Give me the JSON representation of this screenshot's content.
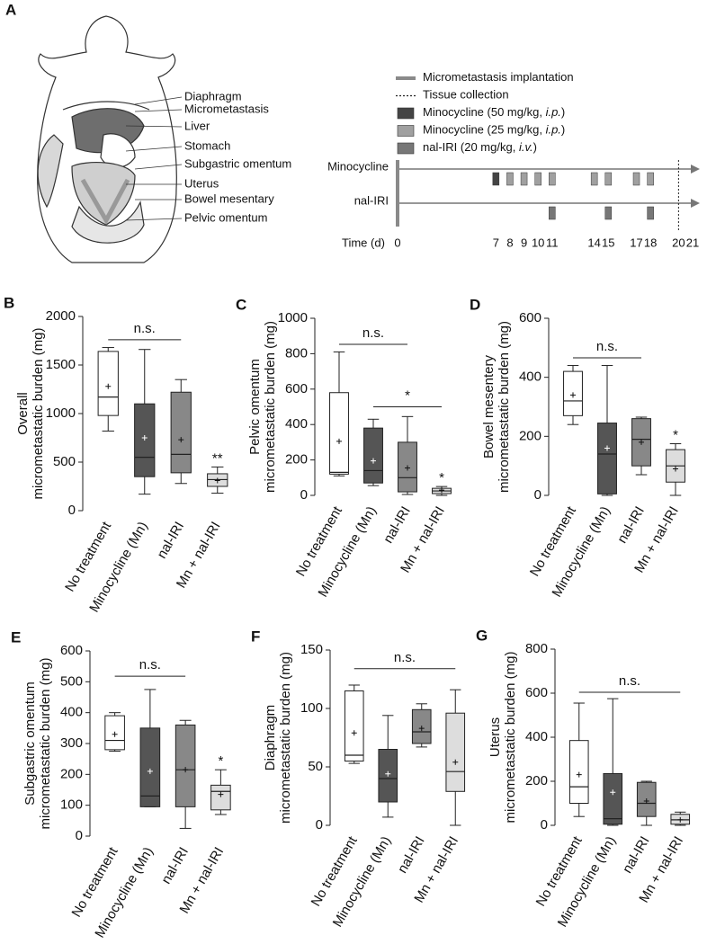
{
  "panel_a": {
    "panel": "A",
    "organs": [
      "Diaphragm",
      "Micrometastasis",
      "Liver",
      "Stomach",
      "Subgastric omentum",
      "Uterus",
      "Bowel mesentary",
      "Pelvic omentum"
    ],
    "legend": [
      {
        "text": "Micrometastasis implantation",
        "color": "#8a8a8a",
        "days": [
          0
        ]
      },
      {
        "text": "Tissue collection",
        "color": "#222222",
        "days": [
          20
        ]
      },
      {
        "text": "Minocycline (50 mg/kg, ",
        "route": "i.p.",
        "end": ")",
        "color": "#444444",
        "row": 0,
        "days": [
          7
        ]
      },
      {
        "text": "Minocycline (25 mg/kg, ",
        "route": "i.p.",
        "end": ")",
        "color": "#a0a0a0",
        "row": 0,
        "days": [
          8,
          9,
          10,
          11,
          14,
          15,
          17,
          18
        ]
      },
      {
        "text": "nal-IRI (20 mg/kg, ",
        "route": "i.v.",
        "end": ")",
        "color": "#777777",
        "row": 1,
        "days": [
          11,
          15,
          18
        ]
      }
    ],
    "rows": [
      "Minocycline",
      "nal-IRI"
    ],
    "xlabel": "Time (d)",
    "xlim": [
      0,
      21
    ],
    "xticks": [
      0,
      7,
      8,
      9,
      10,
      11,
      14,
      15,
      17,
      18,
      20,
      21
    ]
  },
  "chart_data": [
    {
      "type": "box",
      "panel": "B",
      "ylabel": [
        "Overall",
        "micrometastatic burden (mg)"
      ],
      "categories": [
        "No treatment",
        "Minocycline (Mn)",
        "nal-IRI",
        "Mn + nal-IRI"
      ],
      "colors": [
        "#ffffff",
        "#555555",
        "#888888",
        "#dddddd"
      ],
      "ylim": [
        0,
        2000
      ],
      "yticks": [
        0,
        500,
        1000,
        1500,
        2000
      ],
      "boxes": [
        {
          "min": 820,
          "q1": 980,
          "median": 1170,
          "q3": 1640,
          "max": 1680,
          "mean": 1280
        },
        {
          "min": 170,
          "q1": 350,
          "median": 550,
          "q3": 1100,
          "max": 1660,
          "mean": 750
        },
        {
          "min": 280,
          "q1": 390,
          "median": 580,
          "q3": 1220,
          "max": 1350,
          "mean": 730
        },
        {
          "min": 180,
          "q1": 250,
          "median": 320,
          "q3": 380,
          "max": 450,
          "mean": 310
        }
      ],
      "brackets": [
        {
          "text": "n.s.",
          "from": 0,
          "to": 2,
          "y": 1760
        }
      ],
      "markers": [
        {
          "category": 3,
          "text": "**"
        }
      ]
    },
    {
      "type": "box",
      "panel": "C",
      "ylabel": [
        "Pelvic omentum",
        "micrometastatic burden (mg)"
      ],
      "categories": [
        "No treatment",
        "Minocycline (Mn)",
        "nal-IRI",
        "Mn + nal-IRI"
      ],
      "colors": [
        "#ffffff",
        "#555555",
        "#888888",
        "#dddddd"
      ],
      "ylim": [
        0,
        1000
      ],
      "yticks": [
        0,
        200,
        400,
        600,
        800,
        1000
      ],
      "boxes": [
        {
          "min": 110,
          "q1": 120,
          "median": 130,
          "q3": 580,
          "max": 810,
          "mean": 305
        },
        {
          "min": 55,
          "q1": 70,
          "median": 140,
          "q3": 380,
          "max": 430,
          "mean": 195
        },
        {
          "min": 5,
          "q1": 20,
          "median": 100,
          "q3": 300,
          "max": 445,
          "mean": 155
        },
        {
          "min": 0,
          "q1": 10,
          "median": 25,
          "q3": 40,
          "max": 50,
          "mean": 30
        }
      ],
      "brackets": [
        {
          "text": "n.s.",
          "from": 0,
          "to": 2,
          "y": 853
        },
        {
          "text": "*",
          "from": 1,
          "to": 3,
          "y": 500
        }
      ],
      "markers": [
        {
          "category": 3,
          "text": "*"
        }
      ]
    },
    {
      "type": "box",
      "panel": "D",
      "ylabel": [
        "Bowel mesentery",
        "micrometastatic burden (mg)"
      ],
      "categories": [
        "No treatment",
        "Minocycline (Mn)",
        "nal-IRI",
        "Mn + nal-IRI"
      ],
      "colors": [
        "#ffffff",
        "#555555",
        "#888888",
        "#dddddd"
      ],
      "ylim": [
        0,
        600
      ],
      "yticks": [
        0,
        200,
        400,
        600
      ],
      "boxes": [
        {
          "min": 240,
          "q1": 270,
          "median": 320,
          "q3": 420,
          "max": 440,
          "mean": 340
        },
        {
          "min": 0,
          "q1": 5,
          "median": 140,
          "q3": 245,
          "max": 440,
          "mean": 160
        },
        {
          "min": 70,
          "q1": 100,
          "median": 190,
          "q3": 260,
          "max": 265,
          "mean": 180
        },
        {
          "min": 0,
          "q1": 45,
          "median": 100,
          "q3": 155,
          "max": 175,
          "mean": 90
        }
      ],
      "brackets": [
        {
          "text": "n.s.",
          "from": 0,
          "to": 2,
          "y": 466
        }
      ],
      "markers": [
        {
          "category": 3,
          "text": "*"
        }
      ]
    },
    {
      "type": "box",
      "panel": "E",
      "ylabel": [
        "Subgastric omentum",
        "micrometastatic burden (mg)"
      ],
      "categories": [
        "No treatment",
        "Minocycline (Mn)",
        "nal-IRI",
        "Mn + nal-IRI"
      ],
      "colors": [
        "#ffffff",
        "#555555",
        "#888888",
        "#dddddd"
      ],
      "ylim": [
        0,
        600
      ],
      "yticks": [
        0,
        100,
        200,
        300,
        400,
        500,
        600
      ],
      "boxes": [
        {
          "min": 275,
          "q1": 280,
          "median": 310,
          "q3": 390,
          "max": 400,
          "mean": 330
        },
        {
          "min": 95,
          "q1": 95,
          "median": 130,
          "q3": 350,
          "max": 475,
          "mean": 210
        },
        {
          "min": 25,
          "q1": 95,
          "median": 215,
          "q3": 360,
          "max": 375,
          "mean": 215
        },
        {
          "min": 70,
          "q1": 85,
          "median": 145,
          "q3": 165,
          "max": 215,
          "mean": 135
        }
      ],
      "brackets": [
        {
          "text": "n.s.",
          "from": 0,
          "to": 2,
          "y": 518
        }
      ],
      "markers": [
        {
          "category": 3,
          "text": "*"
        }
      ]
    },
    {
      "type": "box",
      "panel": "F",
      "ylabel": [
        "Diaphragm",
        "micrometastatic burden (mg)"
      ],
      "categories": [
        "No treatment",
        "Minocycline (Mn)",
        "nal-IRI",
        "Mn + nal-IRI"
      ],
      "colors": [
        "#ffffff",
        "#555555",
        "#888888",
        "#dddddd"
      ],
      "ylim": [
        0,
        150
      ],
      "yticks": [
        0,
        50,
        100,
        150
      ],
      "boxes": [
        {
          "min": 53,
          "q1": 55,
          "median": 60,
          "q3": 115,
          "max": 120,
          "mean": 79
        },
        {
          "min": 7,
          "q1": 20,
          "median": 40,
          "q3": 65,
          "max": 94,
          "mean": 44
        },
        {
          "min": 67,
          "q1": 70,
          "median": 80,
          "q3": 99,
          "max": 104,
          "mean": 83
        },
        {
          "min": 0,
          "q1": 29,
          "median": 46,
          "q3": 96,
          "max": 116,
          "mean": 54
        }
      ],
      "brackets": [
        {
          "text": "n.s.",
          "from": 0,
          "to": 3,
          "y": 134
        }
      ]
    },
    {
      "type": "box",
      "panel": "G",
      "ylabel": [
        "Uterus",
        "micrometastatic burden (mg)"
      ],
      "categories": [
        "No treatment",
        "Minocycline (Mn)",
        "nal-IRI",
        "Mn + nal-IRI"
      ],
      "colors": [
        "#ffffff",
        "#555555",
        "#888888",
        "#dddddd"
      ],
      "ylim": [
        0,
        800
      ],
      "yticks": [
        0,
        200,
        400,
        600,
        800
      ],
      "boxes": [
        {
          "min": 40,
          "q1": 100,
          "median": 175,
          "q3": 385,
          "max": 555,
          "mean": 230
        },
        {
          "min": 0,
          "q1": 5,
          "median": 30,
          "q3": 235,
          "max": 575,
          "mean": 150
        },
        {
          "min": 0,
          "q1": 40,
          "median": 100,
          "q3": 195,
          "max": 200,
          "mean": 110
        },
        {
          "min": 0,
          "q1": 5,
          "median": 25,
          "q3": 50,
          "max": 60,
          "mean": 25
        }
      ],
      "brackets": [
        {
          "text": "n.s.",
          "from": 0,
          "to": 3,
          "y": 604
        }
      ]
    }
  ]
}
